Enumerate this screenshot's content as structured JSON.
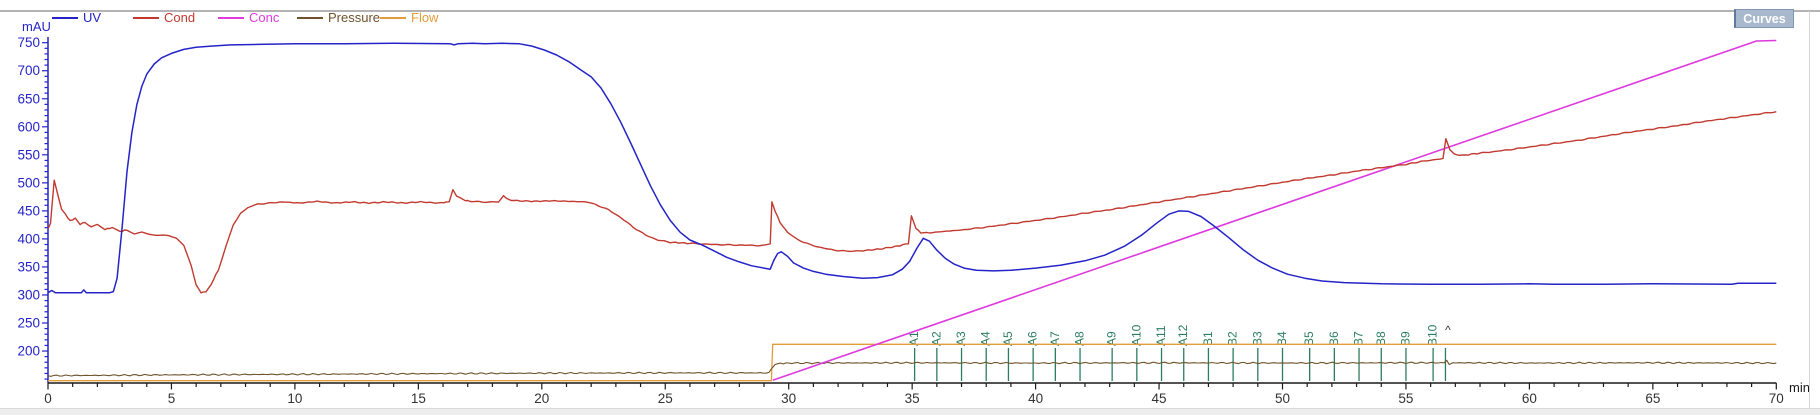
{
  "toolbar": {
    "curves_button_label": "Curves"
  },
  "legend": {
    "items": [
      {
        "name": "uv",
        "label": "UV",
        "color": "#2424c8"
      },
      {
        "name": "cond",
        "label": "Cond",
        "color": "#c13a30"
      },
      {
        "name": "conc",
        "label": "Conc",
        "color": "#de3ade"
      },
      {
        "name": "pressure",
        "label": "Pressure",
        "color": "#6e532c"
      },
      {
        "name": "flow",
        "label": "Flow",
        "color": "#e39c3a"
      }
    ]
  },
  "axes": {
    "y": {
      "unit": "mAU",
      "color": "#2424c8",
      "major_ticks": [
        750,
        700,
        650,
        600,
        550,
        500,
        450,
        400,
        350,
        300,
        250,
        200
      ],
      "minor_step": 10,
      "range": [
        150,
        755
      ]
    },
    "x": {
      "unit": "min",
      "color": "#1a1a1a",
      "label_color": "#333333",
      "major_ticks": [
        0,
        5,
        10,
        15,
        20,
        25,
        30,
        35,
        40,
        45,
        50,
        55,
        60,
        65,
        70
      ],
      "minor_step": 1,
      "range": [
        0,
        70
      ]
    }
  },
  "chart_data": {
    "type": "line",
    "title": "",
    "xlabel": "min",
    "ylabel": "mAU",
    "x_range": [
      0,
      70
    ],
    "y_axis_tick_range": [
      200,
      750
    ],
    "grid": false,
    "legend_position": "top-left",
    "series": [
      {
        "name": "Flow",
        "color": "#e39c3a",
        "width": 1.3,
        "jitter": 0,
        "points": [
          [
            0,
            147
          ],
          [
            29.3,
            147
          ],
          [
            29.35,
            212
          ],
          [
            70,
            212
          ]
        ]
      },
      {
        "name": "Pressure",
        "color": "#6e532c",
        "width": 1.1,
        "jitter": 1.3,
        "points": [
          [
            0,
            156
          ],
          [
            5,
            157.5
          ],
          [
            10,
            158.5
          ],
          [
            15,
            159.5
          ],
          [
            20,
            160.5
          ],
          [
            25,
            161
          ],
          [
            29.2,
            161
          ],
          [
            29.45,
            177
          ],
          [
            30,
            178.5
          ],
          [
            35,
            179
          ],
          [
            40,
            178.5
          ],
          [
            45,
            179
          ],
          [
            50,
            178.6
          ],
          [
            55,
            179
          ],
          [
            56.55,
            179
          ],
          [
            56.65,
            184
          ],
          [
            56.75,
            175
          ],
          [
            56.9,
            179
          ],
          [
            60,
            178.6
          ],
          [
            65,
            179
          ],
          [
            70,
            178.5
          ]
        ]
      },
      {
        "name": "Conc",
        "color": "#de3ade",
        "width": 1.6,
        "jitter": 0,
        "points": [
          [
            29.35,
            148
          ],
          [
            69.2,
            753
          ],
          [
            70,
            754
          ]
        ]
      },
      {
        "name": "Cond",
        "color": "#c13a30",
        "width": 1.4,
        "jitter": 0.9,
        "points": [
          [
            0,
            418
          ],
          [
            0.1,
            428
          ],
          [
            0.25,
            505
          ],
          [
            0.4,
            478
          ],
          [
            0.55,
            452
          ],
          [
            0.7,
            444
          ],
          [
            0.9,
            432
          ],
          [
            1.1,
            437
          ],
          [
            1.3,
            426
          ],
          [
            1.5,
            430
          ],
          [
            1.75,
            421
          ],
          [
            2.0,
            426
          ],
          [
            2.3,
            417
          ],
          [
            2.6,
            420
          ],
          [
            2.9,
            413
          ],
          [
            3.2,
            416
          ],
          [
            3.5,
            409
          ],
          [
            3.8,
            412
          ],
          [
            4.1,
            408
          ],
          [
            4.5,
            407
          ],
          [
            4.9,
            406
          ],
          [
            5.2,
            402
          ],
          [
            5.5,
            388
          ],
          [
            5.8,
            352
          ],
          [
            6.0,
            318
          ],
          [
            6.2,
            304
          ],
          [
            6.4,
            306
          ],
          [
            6.6,
            318
          ],
          [
            6.9,
            345
          ],
          [
            7.2,
            386
          ],
          [
            7.5,
            424
          ],
          [
            7.8,
            446
          ],
          [
            8.1,
            456
          ],
          [
            8.5,
            462
          ],
          [
            9.0,
            464
          ],
          [
            9.5,
            466
          ],
          [
            10.2,
            464
          ],
          [
            10.9,
            467
          ],
          [
            11.6,
            464
          ],
          [
            12.3,
            466
          ],
          [
            13.0,
            464
          ],
          [
            13.7,
            466
          ],
          [
            14.4,
            464
          ],
          [
            15.1,
            466
          ],
          [
            15.8,
            464
          ],
          [
            16.25,
            466
          ],
          [
            16.4,
            488
          ],
          [
            16.55,
            477
          ],
          [
            16.8,
            470
          ],
          [
            17.1,
            467
          ],
          [
            17.6,
            466
          ],
          [
            18.25,
            466
          ],
          [
            18.45,
            477
          ],
          [
            18.65,
            470
          ],
          [
            19.0,
            468
          ],
          [
            19.7,
            467
          ],
          [
            20.4,
            468
          ],
          [
            21.1,
            467
          ],
          [
            21.8,
            466
          ],
          [
            22.2,
            461
          ],
          [
            22.7,
            452
          ],
          [
            23.2,
            438
          ],
          [
            23.7,
            421
          ],
          [
            24.2,
            407
          ],
          [
            24.7,
            398
          ],
          [
            25.2,
            394
          ],
          [
            26.0,
            392
          ],
          [
            27.0,
            390
          ],
          [
            28.0,
            389
          ],
          [
            29.0,
            388
          ],
          [
            29.25,
            392
          ],
          [
            29.32,
            466
          ],
          [
            29.45,
            450
          ],
          [
            29.65,
            429
          ],
          [
            29.95,
            412
          ],
          [
            30.35,
            399
          ],
          [
            30.85,
            390
          ],
          [
            31.35,
            384
          ],
          [
            31.85,
            380
          ],
          [
            32.35,
            378
          ],
          [
            33.0,
            379
          ],
          [
            33.7,
            382
          ],
          [
            34.4,
            387
          ],
          [
            34.85,
            392
          ],
          [
            34.97,
            441
          ],
          [
            35.15,
            419
          ],
          [
            35.35,
            411
          ],
          [
            35.7,
            411
          ],
          [
            36.2,
            413
          ],
          [
            37,
            416
          ],
          [
            38,
            421
          ],
          [
            39,
            427
          ],
          [
            40,
            433
          ],
          [
            41,
            439
          ],
          [
            42,
            446
          ],
          [
            43,
            452
          ],
          [
            44,
            459
          ],
          [
            45,
            466
          ],
          [
            46,
            473
          ],
          [
            47,
            480
          ],
          [
            48,
            487
          ],
          [
            49,
            494
          ],
          [
            50,
            501
          ],
          [
            51,
            508
          ],
          [
            52,
            514
          ],
          [
            53,
            521
          ],
          [
            54,
            527
          ],
          [
            55,
            533
          ],
          [
            55.6,
            538
          ],
          [
            56.1,
            541
          ],
          [
            56.5,
            544
          ],
          [
            56.62,
            578
          ],
          [
            56.78,
            559
          ],
          [
            56.95,
            551
          ],
          [
            57.3,
            549
          ],
          [
            58,
            553
          ],
          [
            59,
            558
          ],
          [
            60,
            564
          ],
          [
            61,
            570
          ],
          [
            62,
            576
          ],
          [
            63,
            583
          ],
          [
            64,
            590
          ],
          [
            65,
            596
          ],
          [
            66,
            602
          ],
          [
            67,
            609
          ],
          [
            68,
            615
          ],
          [
            69,
            621
          ],
          [
            70,
            627
          ]
        ]
      },
      {
        "name": "UV",
        "color": "#2424c8",
        "width": 1.5,
        "jitter": 0,
        "points": [
          [
            0,
            304
          ],
          [
            0.15,
            308
          ],
          [
            0.3,
            304
          ],
          [
            1.35,
            304
          ],
          [
            1.45,
            309
          ],
          [
            1.55,
            304
          ],
          [
            2.5,
            304
          ],
          [
            2.65,
            306
          ],
          [
            2.8,
            330
          ],
          [
            3.0,
            420
          ],
          [
            3.2,
            520
          ],
          [
            3.4,
            590
          ],
          [
            3.6,
            640
          ],
          [
            3.8,
            672
          ],
          [
            4.0,
            694
          ],
          [
            4.3,
            712
          ],
          [
            4.6,
            723
          ],
          [
            5.0,
            731
          ],
          [
            5.5,
            738
          ],
          [
            6.0,
            742
          ],
          [
            6.6,
            744
          ],
          [
            7.4,
            746
          ],
          [
            8.5,
            747
          ],
          [
            10,
            748
          ],
          [
            12,
            748
          ],
          [
            14,
            749
          ],
          [
            16.3,
            748
          ],
          [
            16.45,
            746
          ],
          [
            16.6,
            748
          ],
          [
            17.2,
            749
          ],
          [
            17.7,
            748
          ],
          [
            18.4,
            749
          ],
          [
            19.1,
            748
          ],
          [
            19.6,
            744
          ],
          [
            20.1,
            737
          ],
          [
            20.6,
            728
          ],
          [
            21.1,
            716
          ],
          [
            21.6,
            701
          ],
          [
            22.0,
            689
          ],
          [
            22.4,
            669
          ],
          [
            22.8,
            641
          ],
          [
            23.2,
            608
          ],
          [
            23.6,
            571
          ],
          [
            24.0,
            533
          ],
          [
            24.4,
            495
          ],
          [
            24.8,
            461
          ],
          [
            25.2,
            433
          ],
          [
            25.6,
            412
          ],
          [
            26.0,
            398
          ],
          [
            26.5,
            389
          ],
          [
            27.0,
            378
          ],
          [
            27.5,
            367
          ],
          [
            28.0,
            359
          ],
          [
            28.5,
            352
          ],
          [
            29.0,
            348
          ],
          [
            29.25,
            346
          ],
          [
            29.4,
            362
          ],
          [
            29.55,
            374
          ],
          [
            29.7,
            377
          ],
          [
            29.95,
            369
          ],
          [
            30.2,
            357
          ],
          [
            30.6,
            348
          ],
          [
            31.0,
            342
          ],
          [
            31.5,
            337
          ],
          [
            32.2,
            333
          ],
          [
            33.0,
            330
          ],
          [
            33.6,
            331
          ],
          [
            34.2,
            336
          ],
          [
            34.6,
            346
          ],
          [
            34.9,
            360
          ],
          [
            35.2,
            384
          ],
          [
            35.45,
            401
          ],
          [
            35.7,
            396
          ],
          [
            36.0,
            380
          ],
          [
            36.35,
            365
          ],
          [
            36.7,
            355
          ],
          [
            37.1,
            348
          ],
          [
            37.6,
            344
          ],
          [
            38.3,
            343
          ],
          [
            39.0,
            344
          ],
          [
            40.0,
            348
          ],
          [
            41.0,
            353
          ],
          [
            42.0,
            361
          ],
          [
            42.8,
            371
          ],
          [
            43.6,
            387
          ],
          [
            44.3,
            407
          ],
          [
            44.9,
            428
          ],
          [
            45.4,
            444
          ],
          [
            45.8,
            450
          ],
          [
            46.2,
            449
          ],
          [
            46.7,
            440
          ],
          [
            47.2,
            424
          ],
          [
            47.8,
            403
          ],
          [
            48.4,
            381
          ],
          [
            49.0,
            362
          ],
          [
            49.6,
            348
          ],
          [
            50.2,
            337
          ],
          [
            50.9,
            330
          ],
          [
            51.6,
            325
          ],
          [
            52.5,
            322
          ],
          [
            54,
            320
          ],
          [
            56,
            319
          ],
          [
            58,
            319
          ],
          [
            60,
            320
          ],
          [
            61,
            319
          ],
          [
            63,
            319
          ],
          [
            65,
            320
          ],
          [
            68.2,
            319
          ],
          [
            68.45,
            321
          ],
          [
            70,
            321
          ]
        ]
      }
    ],
    "fractions": {
      "color": "#2c7d5f",
      "marks": [
        {
          "label": "A1",
          "t": 35.1
        },
        {
          "label": "A2",
          "t": 36.0
        },
        {
          "label": "A3",
          "t": 37.0
        },
        {
          "label": "A4",
          "t": 38.0
        },
        {
          "label": "A5",
          "t": 38.9
        },
        {
          "label": "A6",
          "t": 39.9
        },
        {
          "label": "A7",
          "t": 40.8
        },
        {
          "label": "A8",
          "t": 41.8
        },
        {
          "label": "A9",
          "t": 43.1
        },
        {
          "label": "A10",
          "t": 44.1
        },
        {
          "label": "A11",
          "t": 45.1
        },
        {
          "label": "A12",
          "t": 46.0
        },
        {
          "label": "B1",
          "t": 47.0
        },
        {
          "label": "B2",
          "t": 48.0
        },
        {
          "label": "B3",
          "t": 49.0
        },
        {
          "label": "B4",
          "t": 50.0
        },
        {
          "label": "B5",
          "t": 51.1
        },
        {
          "label": "B6",
          "t": 52.1
        },
        {
          "label": "B7",
          "t": 53.1
        },
        {
          "label": "B8",
          "t": 54.0
        },
        {
          "label": "B9",
          "t": 55.0
        },
        {
          "label": "B10",
          "t": 56.1
        },
        {
          "label": "",
          "t": 56.6
        }
      ]
    },
    "annotations": [
      {
        "text": "^",
        "t": 56.7,
        "value": 230
      }
    ]
  }
}
